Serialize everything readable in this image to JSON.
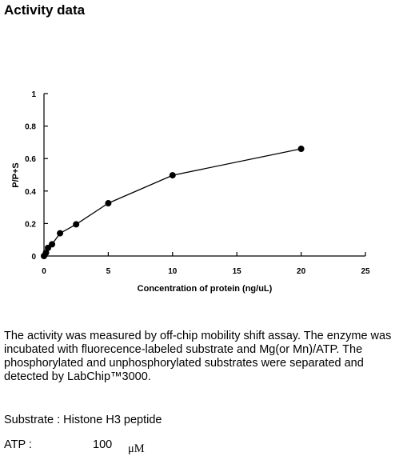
{
  "page": {
    "heading": "Activity data",
    "paragraph": "The activity was measured by off-chip mobility shift assay. The enzyme was incubated with fluorecence-labeled  substrate and Mg(or Mn)/ATP. The phosphorylated and unphosphorylated substrates were separated and detected by LabChip™3000.",
    "substrate_label": "Substrate : Histone H3 peptide",
    "atp_label": "ATP :",
    "atp_value": "100",
    "atp_unit": "μM"
  },
  "chart_data": {
    "type": "line",
    "title": "",
    "xlabel": "Concentration of protein (ng/uL)",
    "ylabel": "P/P+S",
    "xlim": [
      0,
      25
    ],
    "ylim": [
      0,
      1
    ],
    "xticks": [
      0,
      5,
      10,
      15,
      20,
      25
    ],
    "yticks": [
      0,
      0.2,
      0.4,
      0.6,
      0.8,
      1
    ],
    "grid": false,
    "legend": false,
    "marker": "circle",
    "color": "#000000",
    "series": [
      {
        "x": [
          0,
          0.156,
          0.3125,
          0.625,
          1.25,
          2.5,
          5,
          10,
          20
        ],
        "y": [
          0,
          0.02,
          0.05,
          0.072,
          0.14,
          0.195,
          0.325,
          0.497,
          0.66
        ]
      }
    ]
  }
}
